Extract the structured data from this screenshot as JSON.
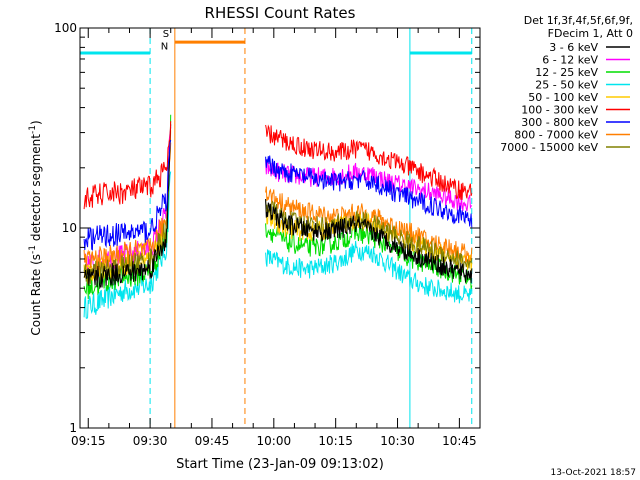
{
  "chart_data": {
    "type": "line",
    "title": "RHESSI Count Rates",
    "xlabel": "Start Time (23-Jan-09 09:13:02)",
    "ylabel": "Count Rate (s⁻¹ detector segment⁻¹)",
    "ylabel_main": "Count Rate (s",
    "ylabel_sup1": "-1",
    "ylabel_mid": " detector segment",
    "ylabel_sup2": "-1",
    "ylabel_end": ")",
    "yscale": "log",
    "ylim": [
      1,
      100
    ],
    "xlim": [
      "09:13",
      "10:50"
    ],
    "y_ticks": [
      "1",
      "10",
      "100"
    ],
    "x_ticks": [
      "09:15",
      "09:30",
      "09:45",
      "10:00",
      "10:15",
      "10:30",
      "10:45"
    ],
    "legend_header": [
      "Det 1f,3f,4f,5f,6f,9f,",
      "FDecim 1, Att 0"
    ],
    "legend_placement": "right",
    "timestamp": "13-Oct-2021 18:57",
    "flags": {
      "saa_bar": {
        "start": "09:13",
        "end": "09:30",
        "level": 75,
        "color": "#00e5ee"
      },
      "saa_bar2": {
        "start": "10:33",
        "end": "10:48",
        "level": 75,
        "color": "#00e5ee"
      },
      "attenuator_bar": {
        "start": "09:36",
        "end": "09:53",
        "level": 85,
        "color": "#ff7f00"
      },
      "marker_S": "S",
      "marker_N": "N"
    },
    "vlines": [
      {
        "time": "09:13",
        "color": "#00e5ee",
        "style": "solid"
      },
      {
        "time": "09:30",
        "color": "#00e5ee",
        "style": "dashed"
      },
      {
        "time": "09:36",
        "color": "#ff7f00",
        "style": "solid"
      },
      {
        "time": "09:53",
        "color": "#ff7f00",
        "style": "dashed"
      },
      {
        "time": "10:33",
        "color": "#00e5ee",
        "style": "solid"
      },
      {
        "time": "10:48",
        "color": "#00e5ee",
        "style": "dashed"
      }
    ],
    "series": [
      {
        "name": "3 - 6 keV",
        "color": "#000000",
        "seg1": [
          5.5,
          5.6,
          5.8,
          6.0,
          6.0,
          6.3,
          9.0,
          30
        ],
        "seg2": [
          12.5,
          10.5,
          9.8,
          9.5,
          10.0,
          10.5,
          9.5,
          8.5,
          7.5,
          6.8,
          6.2,
          5.8
        ]
      },
      {
        "name": "6 - 12 keV",
        "color": "#ff00ff",
        "seg1": [
          6.5,
          6.8,
          7.0,
          7.2,
          7.5,
          7.8,
          12,
          35
        ],
        "seg2": [
          20,
          18.5,
          18,
          18,
          18.5,
          19,
          18.5,
          17,
          16,
          15,
          14,
          13
        ]
      },
      {
        "name": "12 - 25 keV",
        "color": "#00dd00",
        "seg1": [
          5.0,
          5.2,
          5.5,
          5.7,
          5.8,
          6.0,
          9,
          33
        ],
        "seg2": [
          10.0,
          8.5,
          8.0,
          8.2,
          8.8,
          9.5,
          9.0,
          8.0,
          7.0,
          6.5,
          6.0,
          5.5
        ]
      },
      {
        "name": "25 - 50 keV",
        "color": "#00e5ee",
        "seg1": [
          4.0,
          4.2,
          4.5,
          4.8,
          5.0,
          5.2,
          8,
          20
        ],
        "seg2": [
          7.2,
          6.5,
          6.2,
          6.5,
          7.0,
          7.8,
          7.5,
          6.5,
          5.5,
          5.0,
          4.8,
          4.5
        ]
      },
      {
        "name": "50 - 100 keV",
        "color": "#ffcc00",
        "seg1": [
          6.0,
          6.2,
          6.4,
          6.6,
          6.8,
          7.0,
          10,
          30
        ],
        "seg2": [
          11.5,
          10,
          9.5,
          9.8,
          10.5,
          11.0,
          10.5,
          9.5,
          8.5,
          7.8,
          7.2,
          6.8
        ]
      },
      {
        "name": "100 - 300 keV",
        "color": "#ff0000",
        "seg1": [
          14,
          14.5,
          15,
          15,
          15.5,
          16,
          20,
          30
        ],
        "seg2": [
          30,
          27,
          25,
          24,
          24,
          25,
          24,
          22,
          20,
          18,
          16,
          15
        ]
      },
      {
        "name": "300 - 800 keV",
        "color": "#0000ff",
        "seg1": [
          8.8,
          9.0,
          9.2,
          9.3,
          9.5,
          9.7,
          14,
          28
        ],
        "seg2": [
          21,
          19,
          18,
          17,
          17,
          17.5,
          17,
          15.5,
          14,
          13,
          12,
          11
        ]
      },
      {
        "name": "800 - 7000 keV",
        "color": "#ff7f00",
        "seg1": [
          6.8,
          7.0,
          7.2,
          7.4,
          7.6,
          7.8,
          11,
          30
        ],
        "seg2": [
          15,
          13,
          12,
          11.5,
          11.5,
          12,
          11.5,
          10.5,
          9.5,
          8.5,
          8.0,
          7.2
        ]
      },
      {
        "name": "7000 - 15000 keV",
        "color": "#808000",
        "seg1": [
          5.8,
          6.0,
          6.2,
          6.4,
          6.6,
          6.8,
          10,
          29
        ],
        "seg2": [
          13,
          11,
          10.5,
          10.2,
          10.5,
          11,
          10.5,
          9.5,
          8.5,
          7.8,
          7.2,
          6.5
        ]
      }
    ],
    "segments": {
      "seg1_times": [
        "09:14",
        "09:17",
        "09:20",
        "09:23",
        "09:26",
        "09:30",
        "09:34",
        "09:35"
      ],
      "seg2_times": [
        "09:58",
        "10:03",
        "10:08",
        "10:13",
        "10:17",
        "10:20",
        "10:24",
        "10:28",
        "10:33",
        "10:38",
        "10:43",
        "10:48"
      ]
    }
  }
}
